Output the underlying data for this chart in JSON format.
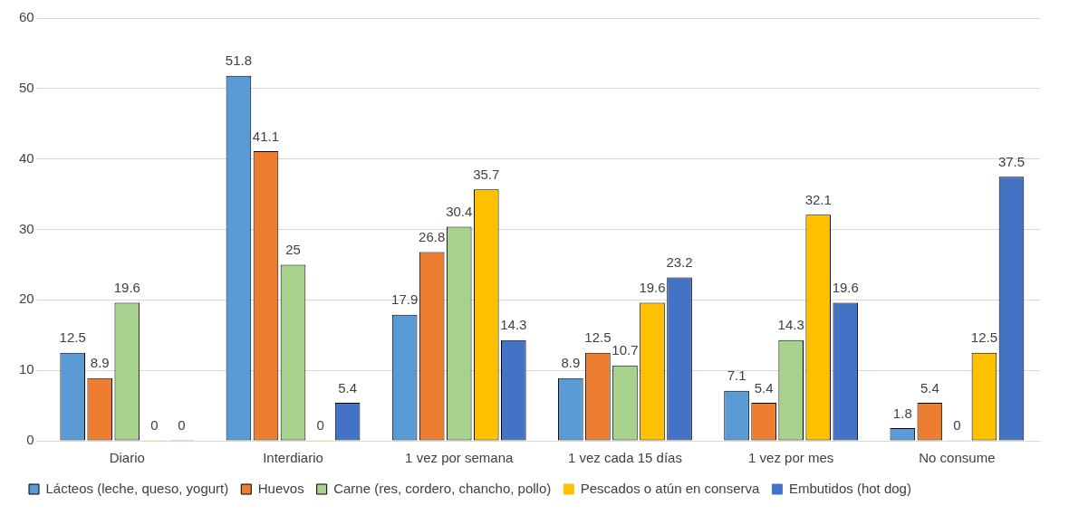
{
  "chart_data": {
    "type": "bar",
    "categories": [
      "Diario",
      "Interdiario",
      "1 vez por semana",
      "1 vez cada 15 días",
      "1 vez por mes",
      "No consume"
    ],
    "series": [
      {
        "name": "Lácteos (leche, queso, yogurt)",
        "color": "#5b9bd5",
        "values": [
          12.5,
          51.8,
          17.9,
          8.9,
          7.1,
          1.8
        ]
      },
      {
        "name": "Huevos",
        "color": "#ed7d31",
        "values": [
          8.9,
          41.1,
          26.8,
          12.5,
          5.4,
          5.4
        ]
      },
      {
        "name": "Carne (res, cordero, chancho, pollo)",
        "color": "#a9d18e",
        "values": [
          19.6,
          25,
          30.4,
          10.7,
          14.3,
          0
        ]
      },
      {
        "name": "Pescados o atún en conserva",
        "color": "#ffc000",
        "values": [
          0,
          0,
          35.7,
          19.6,
          32.1,
          12.5
        ]
      },
      {
        "name": "Embutidos (hot dog)",
        "color": "#4472c4",
        "values": [
          0,
          5.4,
          14.3,
          23.2,
          19.6,
          37.5
        ]
      }
    ],
    "ylim": [
      0,
      60
    ],
    "yticks": [
      0,
      10,
      20,
      30,
      40,
      50,
      60
    ],
    "grid": "y",
    "legend": "bottom",
    "data_labels": true
  }
}
